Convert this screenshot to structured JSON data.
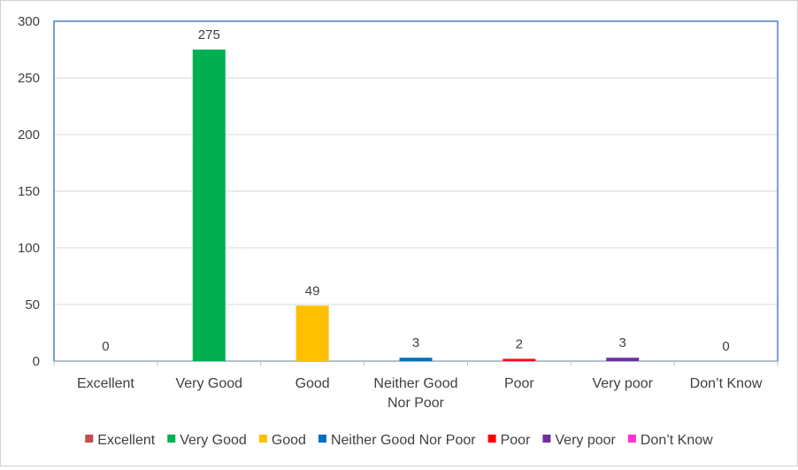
{
  "chart_data": {
    "type": "bar",
    "categories": [
      "Excellent",
      "Very Good",
      "Good",
      "Neither Good Nor Poor",
      "Poor",
      "Very poor",
      "Don’t Know"
    ],
    "category_lines": [
      [
        "Excellent"
      ],
      [
        "Very Good"
      ],
      [
        "Good"
      ],
      [
        "Neither Good",
        "Nor Poor"
      ],
      [
        "Poor"
      ],
      [
        "Very poor"
      ],
      [
        "Don’t Know"
      ]
    ],
    "values": [
      0,
      275,
      49,
      3,
      2,
      3,
      0
    ],
    "data_labels": [
      "0",
      "275",
      "49",
      "3",
      "2",
      "3",
      "0"
    ],
    "colors": [
      "#c0504d",
      "#00b050",
      "#ffc000",
      "#0070c0",
      "#ff0000",
      "#7030a0",
      "#ff33cc"
    ],
    "legend": [
      "Excellent",
      "Very Good",
      "Good",
      "Neither Good Nor Poor",
      "Poor",
      "Very poor",
      "Don’t Know"
    ],
    "legend_position": "bottom",
    "ylim": [
      0,
      300
    ],
    "yticks": [
      0,
      50,
      100,
      150,
      200,
      250,
      300
    ],
    "grid": true,
    "plot_border_color": "#4f81bd",
    "gridline_color": "#d9d9d9"
  }
}
